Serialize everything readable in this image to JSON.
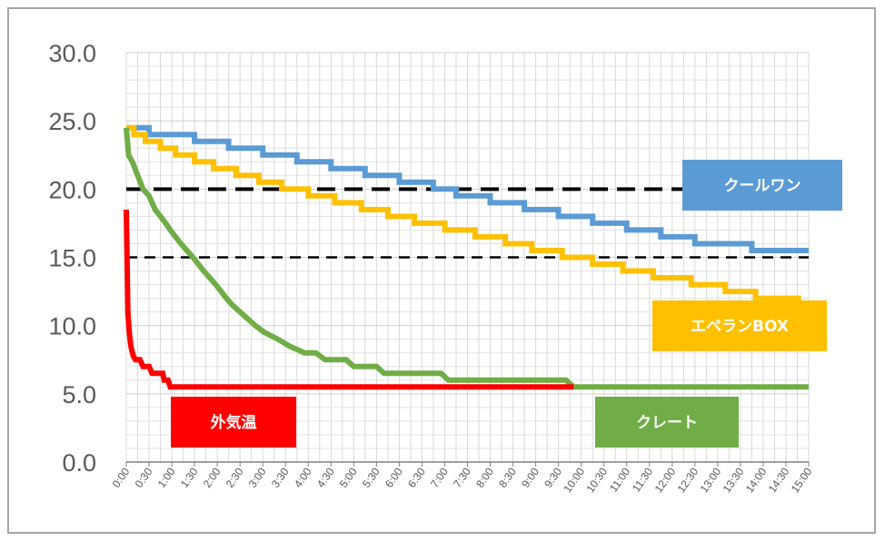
{
  "chart_data": {
    "type": "line",
    "title": "",
    "xlabel": "",
    "ylabel": "",
    "ylim": [
      0,
      30
    ],
    "yticks": [
      "0.0",
      "5.0",
      "10.0",
      "15.0",
      "20.0",
      "25.0",
      "30.0"
    ],
    "xlim_minutes": [
      0,
      900
    ],
    "xticks": [
      "0:00",
      "0:30",
      "1:00",
      "1:30",
      "2:00",
      "2:30",
      "3:00",
      "3:30",
      "4:00",
      "4:30",
      "5:00",
      "5:30",
      "6:00",
      "6:30",
      "7:00",
      "7:30",
      "8:00",
      "8:30",
      "9:00",
      "9:30",
      "10:00",
      "10:30",
      "11:00",
      "11:30",
      "12:00",
      "12:30",
      "13:00",
      "13:30",
      "14:00",
      "14:30",
      "15:00"
    ],
    "grid": true,
    "reference_lines": [
      {
        "y": 20,
        "style": "dashed-thick",
        "color": "#000000"
      },
      {
        "y": 15,
        "style": "dashed",
        "color": "#000000"
      }
    ],
    "series": [
      {
        "name": "クールワン",
        "color": "#5b9bd5",
        "points": [
          [
            0,
            24.5
          ],
          [
            30,
            24.5
          ],
          [
            30,
            24
          ],
          [
            90,
            24
          ],
          [
            90,
            23.5
          ],
          [
            135,
            23.5
          ],
          [
            135,
            23
          ],
          [
            180,
            23
          ],
          [
            180,
            22.5
          ],
          [
            225,
            22.5
          ],
          [
            225,
            22
          ],
          [
            270,
            22
          ],
          [
            270,
            21.5
          ],
          [
            315,
            21.5
          ],
          [
            315,
            21
          ],
          [
            360,
            21
          ],
          [
            360,
            20.5
          ],
          [
            405,
            20.5
          ],
          [
            405,
            20
          ],
          [
            435,
            20
          ],
          [
            435,
            19.5
          ],
          [
            480,
            19.5
          ],
          [
            480,
            19
          ],
          [
            525,
            19
          ],
          [
            525,
            18.5
          ],
          [
            570,
            18.5
          ],
          [
            570,
            18
          ],
          [
            615,
            18
          ],
          [
            615,
            17.5
          ],
          [
            660,
            17.5
          ],
          [
            660,
            17
          ],
          [
            705,
            17
          ],
          [
            705,
            16.5
          ],
          [
            750,
            16.5
          ],
          [
            750,
            16
          ],
          [
            825,
            16
          ],
          [
            825,
            15.5
          ],
          [
            900,
            15.5
          ]
        ]
      },
      {
        "name": "エペランBOX",
        "color": "#ffc000",
        "points": [
          [
            0,
            24.5
          ],
          [
            10,
            24.5
          ],
          [
            10,
            24
          ],
          [
            25,
            24
          ],
          [
            25,
            23.5
          ],
          [
            45,
            23.5
          ],
          [
            45,
            23
          ],
          [
            65,
            23
          ],
          [
            65,
            22.5
          ],
          [
            90,
            22.5
          ],
          [
            90,
            22
          ],
          [
            115,
            22
          ],
          [
            115,
            21.5
          ],
          [
            145,
            21.5
          ],
          [
            145,
            21
          ],
          [
            175,
            21
          ],
          [
            175,
            20.5
          ],
          [
            205,
            20.5
          ],
          [
            205,
            20
          ],
          [
            240,
            20
          ],
          [
            240,
            19.5
          ],
          [
            275,
            19.5
          ],
          [
            275,
            19
          ],
          [
            310,
            19
          ],
          [
            310,
            18.5
          ],
          [
            345,
            18.5
          ],
          [
            345,
            18
          ],
          [
            380,
            18
          ],
          [
            380,
            17.5
          ],
          [
            420,
            17.5
          ],
          [
            420,
            17
          ],
          [
            460,
            17
          ],
          [
            460,
            16.5
          ],
          [
            500,
            16.5
          ],
          [
            500,
            16
          ],
          [
            535,
            16
          ],
          [
            535,
            15.5
          ],
          [
            575,
            15.5
          ],
          [
            575,
            15
          ],
          [
            615,
            15
          ],
          [
            615,
            14.5
          ],
          [
            655,
            14.5
          ],
          [
            655,
            14
          ],
          [
            695,
            14
          ],
          [
            695,
            13.5
          ],
          [
            745,
            13.5
          ],
          [
            745,
            13
          ],
          [
            790,
            13
          ],
          [
            790,
            12.5
          ],
          [
            830,
            12.5
          ],
          [
            830,
            12
          ],
          [
            890,
            12
          ]
        ]
      },
      {
        "name": "クレート",
        "color": "#70ad47",
        "points": [
          [
            0,
            24.5
          ],
          [
            3,
            22.5
          ],
          [
            8,
            22
          ],
          [
            15,
            21
          ],
          [
            22,
            20
          ],
          [
            30,
            19.5
          ],
          [
            38,
            18.5
          ],
          [
            45,
            18
          ],
          [
            52,
            17.5
          ],
          [
            58,
            17
          ],
          [
            65,
            16.5
          ],
          [
            72,
            16
          ],
          [
            80,
            15.5
          ],
          [
            88,
            15
          ],
          [
            95,
            14.5
          ],
          [
            102,
            14
          ],
          [
            110,
            13.5
          ],
          [
            118,
            13
          ],
          [
            125,
            12.5
          ],
          [
            132,
            12
          ],
          [
            140,
            11.5
          ],
          [
            150,
            11
          ],
          [
            160,
            10.5
          ],
          [
            170,
            10
          ],
          [
            182,
            9.5
          ],
          [
            200,
            9
          ],
          [
            215,
            8.5
          ],
          [
            235,
            8
          ],
          [
            250,
            8
          ],
          [
            262,
            7.5
          ],
          [
            290,
            7.5
          ],
          [
            300,
            7
          ],
          [
            330,
            7
          ],
          [
            340,
            6.5
          ],
          [
            415,
            6.5
          ],
          [
            425,
            6
          ],
          [
            580,
            6
          ],
          [
            590,
            5.5
          ],
          [
            900,
            5.5
          ]
        ]
      },
      {
        "name": "外気温",
        "color": "#ff0000",
        "points": [
          [
            0,
            18.5
          ],
          [
            1,
            15
          ],
          [
            2,
            11
          ],
          [
            4,
            9.5
          ],
          [
            6,
            8.5
          ],
          [
            9,
            7.8
          ],
          [
            12,
            7.5
          ],
          [
            18,
            7.5
          ],
          [
            22,
            7
          ],
          [
            30,
            7
          ],
          [
            34,
            6.5
          ],
          [
            48,
            6.5
          ],
          [
            50,
            6
          ],
          [
            55,
            6
          ],
          [
            58,
            5.5
          ],
          [
            590,
            5.5
          ]
        ]
      }
    ]
  },
  "labels": {
    "coolone": "クールワン",
    "eperan": "エペランBOX",
    "crate": "クレート",
    "outside": "外気温"
  }
}
